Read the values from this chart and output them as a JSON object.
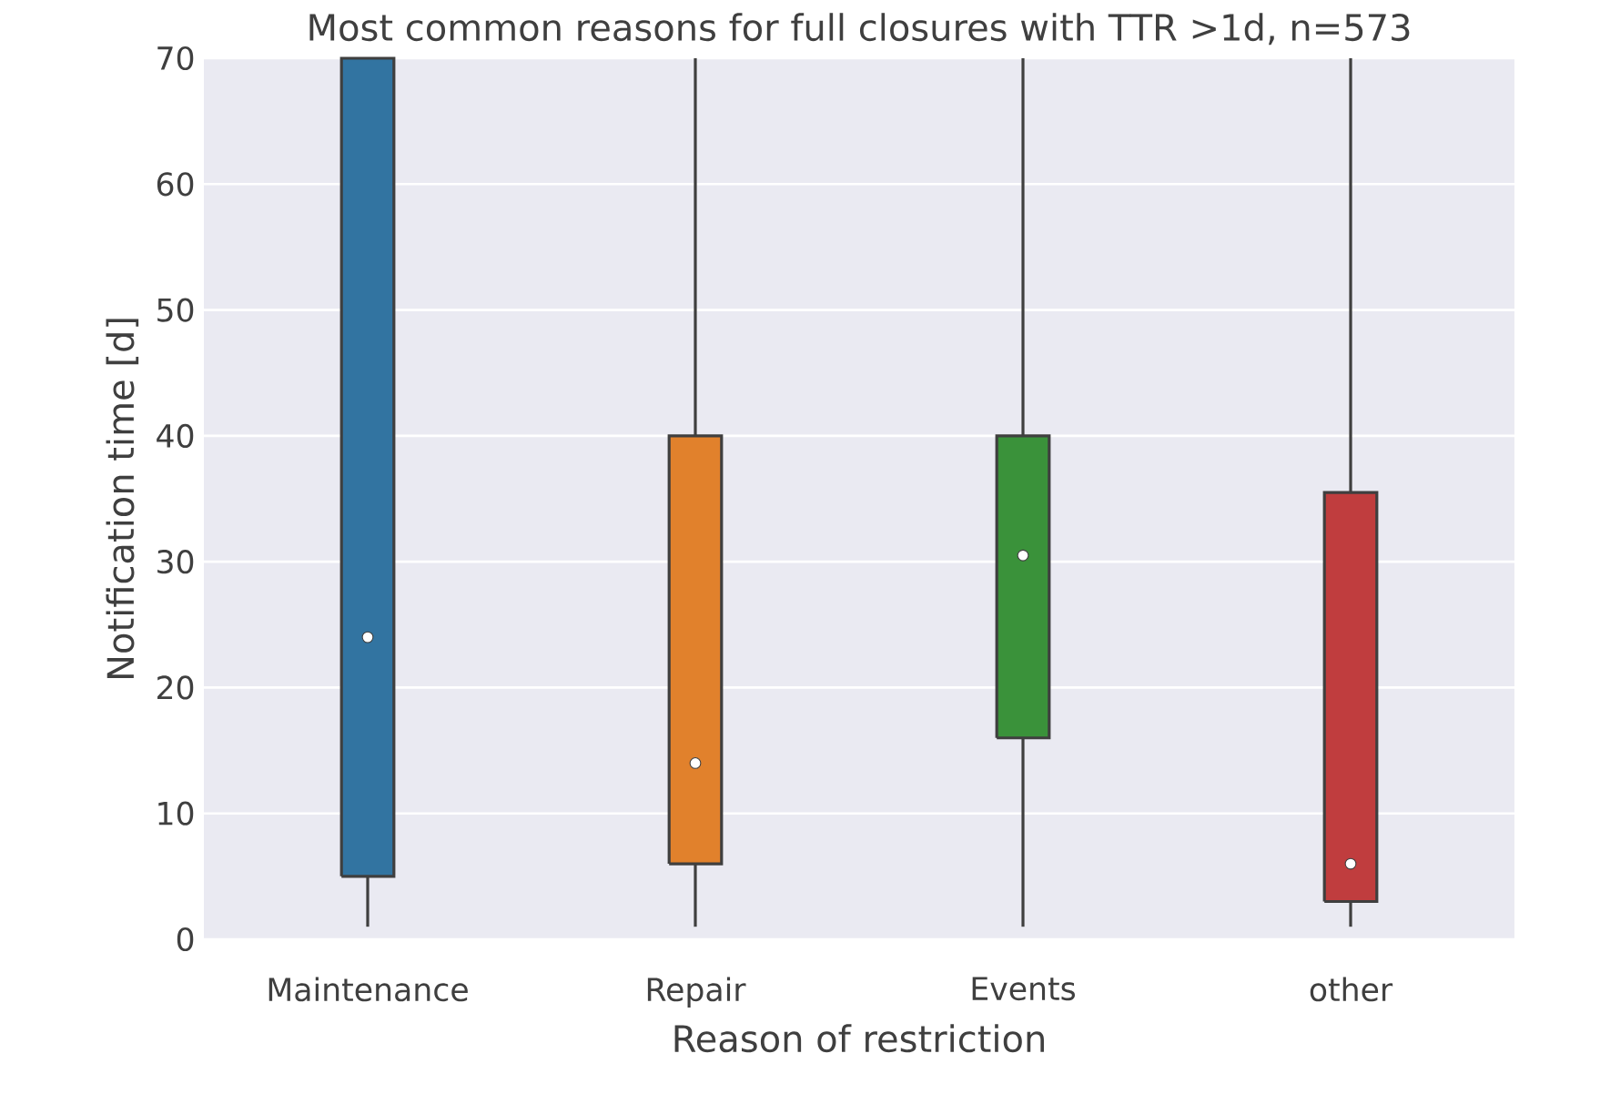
{
  "chart_data": {
    "type": "box",
    "title": "Most common reasons for full closures with TTR >1d, n=573",
    "xlabel": "Reason of restriction",
    "ylabel": "Notification time [d]",
    "categories": [
      "Maintenance",
      "Repair",
      "Events",
      "other"
    ],
    "colors": [
      "#3274a1",
      "#e1812c",
      "#3a923a",
      "#c03d3e"
    ],
    "boxes": [
      {
        "low": 1,
        "q1": 5,
        "median": 24,
        "q3": 70
      },
      {
        "low": 1,
        "q1": 6,
        "median": 14,
        "q3": 40
      },
      {
        "low": 1,
        "q1": 16,
        "median": 30.5,
        "q3": 40
      },
      {
        "low": 1,
        "q1": 3,
        "median": 6,
        "q3": 35.5
      }
    ],
    "ylim": [
      0,
      70
    ],
    "yticks": [
      0,
      10,
      20,
      30,
      40,
      50,
      60,
      70
    ],
    "grid": "y"
  }
}
